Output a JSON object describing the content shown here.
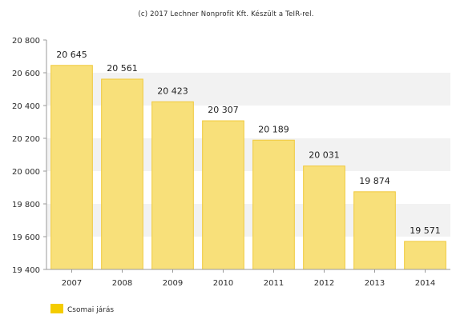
{
  "copyright": "(c) 2017 Lechner Nonprofit Kft. Készült a TeIR-rel.",
  "colors": {
    "bar_fill": "#F8E07A",
    "bar_stroke": "#F0C93A",
    "legend_swatch": "#F4CC00",
    "band": "#F2F2F2",
    "axis": "#9A9A9A"
  },
  "chart_data": {
    "type": "bar",
    "title": "",
    "xlabel": "",
    "ylabel": "",
    "categories": [
      "2007",
      "2008",
      "2009",
      "2010",
      "2011",
      "2012",
      "2013",
      "2014"
    ],
    "series": [
      {
        "name": "Csomai járás",
        "values": [
          20645,
          20561,
          20423,
          20307,
          20189,
          20031,
          19874,
          19571
        ]
      }
    ],
    "data_labels": [
      "20 645",
      "20 561",
      "20 423",
      "20 307",
      "20 189",
      "20 031",
      "19 874",
      "19 571"
    ],
    "ylim": [
      19400,
      20800
    ],
    "yticks": [
      19400,
      19600,
      19800,
      20000,
      20200,
      20400,
      20600,
      20800
    ],
    "ytick_labels": [
      "19 400",
      "19 600",
      "19 800",
      "20 000",
      "20 200",
      "20 400",
      "20 600",
      "20 800"
    ],
    "grid": "alternating horizontal bands",
    "legend_position": "bottom-left"
  }
}
